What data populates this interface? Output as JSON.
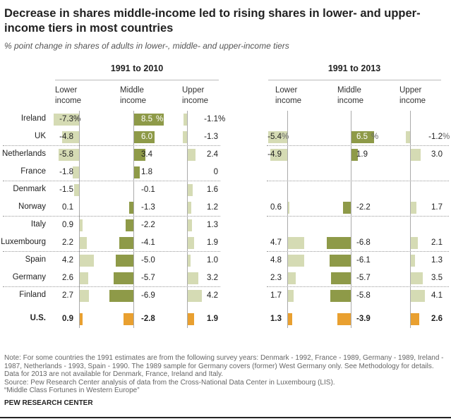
{
  "title": "Decrease in shares middle-income led to rising shares in lower- and upper-income tiers in most countries",
  "subtitle": "% point change in shares of adults in lower-, middle- and upper-income tiers",
  "colors": {
    "lower": "#d5dbb4",
    "middle": "#8e9a48",
    "us": "#e9a030",
    "axis": "#aaaaaa"
  },
  "chart_data": {
    "type": "bar",
    "orientation": "horizontal",
    "unit": "% point change",
    "column_headers": [
      "Lower income",
      "Middle income",
      "Upper income"
    ],
    "categories": [
      "Ireland",
      "UK",
      "Netherlands",
      "France",
      "Denmark",
      "Norway",
      "Italy",
      "Luxembourg",
      "Spain",
      "Germany",
      "Finland",
      "U.S."
    ],
    "panels": [
      {
        "title": "1991 to 2010",
        "series": [
          {
            "name": "Lower income",
            "values": [
              -7.3,
              -4.8,
              -5.8,
              -1.8,
              -1.5,
              0.1,
              0.9,
              2.2,
              4.2,
              2.6,
              2.7,
              0.9
            ]
          },
          {
            "name": "Middle income",
            "values": [
              8.5,
              6.0,
              3.4,
              1.8,
              -0.1,
              -1.3,
              -2.2,
              -4.1,
              -5.0,
              -5.7,
              -6.9,
              -2.8
            ]
          },
          {
            "name": "Upper income",
            "values": [
              -1.1,
              -1.3,
              2.4,
              0,
              1.6,
              1.2,
              1.3,
              1.9,
              1.0,
              3.2,
              4.2,
              1.9
            ]
          }
        ]
      },
      {
        "title": "1991 to 2013",
        "series": [
          {
            "name": "Lower income",
            "values": [
              null,
              -5.4,
              -4.9,
              null,
              null,
              0.6,
              null,
              4.7,
              4.8,
              2.3,
              1.7,
              1.3
            ]
          },
          {
            "name": "Middle income",
            "values": [
              null,
              6.5,
              1.9,
              null,
              null,
              -2.2,
              null,
              -6.8,
              -6.1,
              -5.7,
              -5.8,
              -3.9
            ]
          },
          {
            "name": "Upper income",
            "values": [
              null,
              -1.2,
              3.0,
              null,
              null,
              1.7,
              null,
              2.1,
              1.3,
              3.5,
              4.1,
              2.6
            ]
          }
        ]
      }
    ]
  },
  "note": "Note: For some countries the 1991 estimates are from the following survey years: Denmark - 1992, France - 1989, Germany - 1989, Ireland - 1987, Netherlands - 1993, Spain - 1990. The 1989 sample for Germany covers (former) West Germany only. See Methodology for details. Data for 2013 are not available for Denmark, France, Ireland and Italy.",
  "source": "Source: Pew Research Center analysis of data from the Cross-National Data Center in Luxembourg (LIS).",
  "report": "“Middle Class Fortunes in Western Europe”",
  "footer": "PEW RESEARCH CENTER"
}
